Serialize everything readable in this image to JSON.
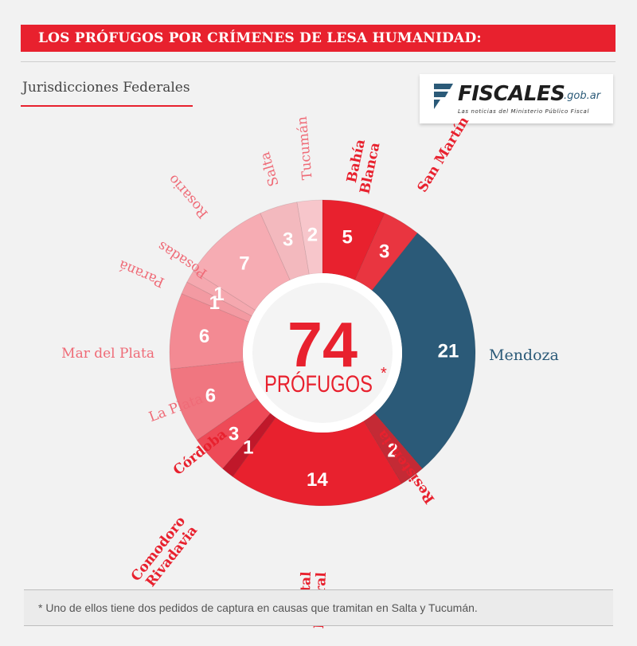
{
  "header": {
    "title": "LOS PRÓFUGOS POR CRÍMENES DE LESA HUMANIDAD:",
    "subtitle": "Jurisdicciones Federales"
  },
  "logo": {
    "name": "FISCALES",
    "domain": ".gob.ar",
    "tagline": "Las noticias del Ministerio Público Fiscal"
  },
  "center": {
    "total": "74",
    "label": "PRÓFUGOS",
    "asterisk": "*"
  },
  "footnote": "* Uno de ellos tiene dos pedidos de captura en causas que tramitan en Salta y Tucumán.",
  "chart_data": {
    "type": "pie",
    "style": "donut",
    "total": 74,
    "slices": [
      {
        "label": "Bahía Blanca",
        "value": 5,
        "color": "#e8212e"
      },
      {
        "label": "San Martín",
        "value": 3,
        "color": "#e93540"
      },
      {
        "label": "Mendoza",
        "value": 21,
        "color": "#2b5a78"
      },
      {
        "label": "Resistencia",
        "value": 2,
        "color": "#c42a35"
      },
      {
        "label": "Capital Federal",
        "value": 14,
        "color": "#e8212e"
      },
      {
        "label": "Comodoro Rivadavia",
        "value": 1,
        "color": "#c0182a"
      },
      {
        "label": "Córdoba",
        "value": 3,
        "color": "#ee4a57"
      },
      {
        "label": "La Plata",
        "value": 6,
        "color": "#f07680"
      },
      {
        "label": "Mar del Plata",
        "value": 6,
        "color": "#f38a93"
      },
      {
        "label": "Paraná",
        "value": 1,
        "color": "#f39aa2"
      },
      {
        "label": "Posadas",
        "value": 1,
        "color": "#f5a8af"
      },
      {
        "label": "Rosario",
        "value": 7,
        "color": "#f6acb3"
      },
      {
        "label": "Salta",
        "value": 3,
        "color": "#f3b9be"
      },
      {
        "label": "Tucumán",
        "value": 2,
        "color": "#f7c6cb"
      }
    ]
  }
}
